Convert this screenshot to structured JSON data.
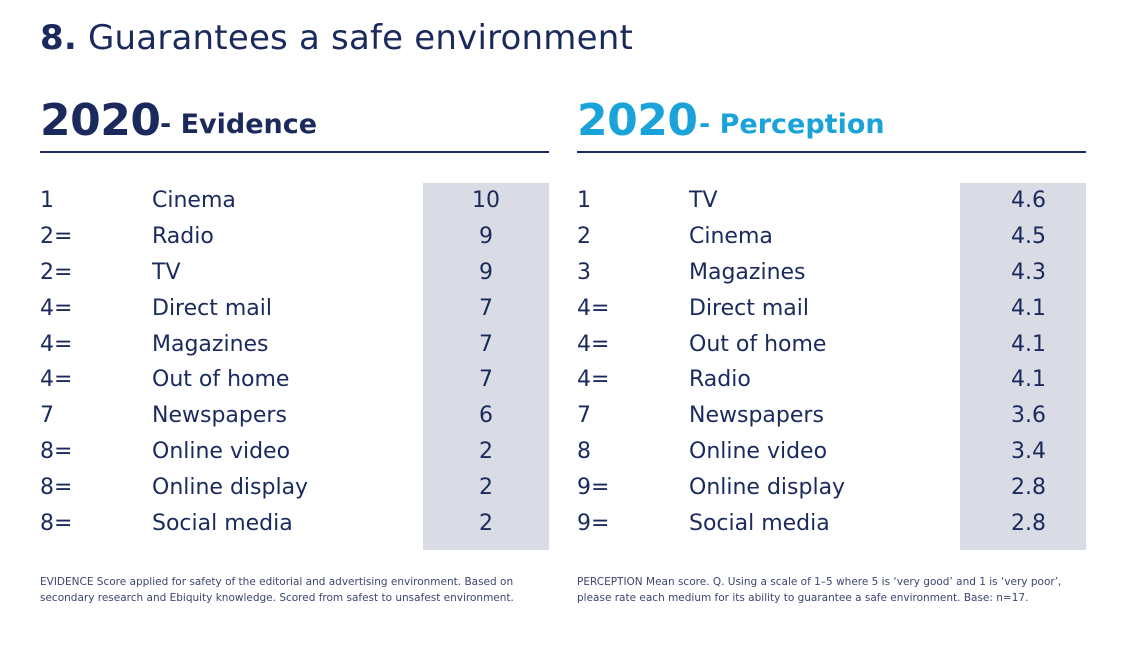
{
  "title": {
    "number": "8.",
    "text": "Guarantees a safe environment"
  },
  "evidence": {
    "year": "2020",
    "label": "- Evidence",
    "accent_color": "#1b2a5c",
    "rows": [
      {
        "rank": "1",
        "medium": "Cinema",
        "score": "10"
      },
      {
        "rank": "2=",
        "medium": "Radio",
        "score": "9"
      },
      {
        "rank": "2=",
        "medium": "TV",
        "score": "9"
      },
      {
        "rank": "4=",
        "medium": "Direct mail",
        "score": "7"
      },
      {
        "rank": "4=",
        "medium": "Magazines",
        "score": "7"
      },
      {
        "rank": "4=",
        "medium": "Out of home",
        "score": "7"
      },
      {
        "rank": "7",
        "medium": "Newspapers",
        "score": "6"
      },
      {
        "rank": "8=",
        "medium": "Online video",
        "score": "2"
      },
      {
        "rank": "8=",
        "medium": "Online display",
        "score": "2"
      },
      {
        "rank": "8=",
        "medium": "Social media",
        "score": "2"
      }
    ],
    "footnote": "EVIDENCE Score applied for safety of the editorial and advertising environment. Based on secondary research and Ebiquity knowledge. Scored from safest to unsafest environment."
  },
  "perception": {
    "year": "2020",
    "label": "- Perception",
    "accent_color": "#1aa3d9",
    "rows": [
      {
        "rank": "1",
        "medium": "TV",
        "score": "4.6"
      },
      {
        "rank": "2",
        "medium": "Cinema",
        "score": "4.5"
      },
      {
        "rank": "3",
        "medium": "Magazines",
        "score": "4.3"
      },
      {
        "rank": "4=",
        "medium": "Direct mail",
        "score": "4.1"
      },
      {
        "rank": "4=",
        "medium": "Out of home",
        "score": "4.1"
      },
      {
        "rank": "4=",
        "medium": "Radio",
        "score": "4.1"
      },
      {
        "rank": "7",
        "medium": "Newspapers",
        "score": "3.6"
      },
      {
        "rank": "8",
        "medium": "Online video",
        "score": "3.4"
      },
      {
        "rank": "9=",
        "medium": "Online display",
        "score": "2.8"
      },
      {
        "rank": "9=",
        "medium": "Social media",
        "score": "2.8"
      }
    ],
    "footnote": "PERCEPTION Mean score. Q. Using a scale of 1–5 where 5 is ‘very good’ and 1 is ‘very poor’, please rate each medium for its ability to guarantee a safe environment. Base: n=17."
  },
  "colors": {
    "navy": "#1b2a5c",
    "cyan": "#1aa3d9",
    "score_column_bg": "#d9dbe5"
  }
}
